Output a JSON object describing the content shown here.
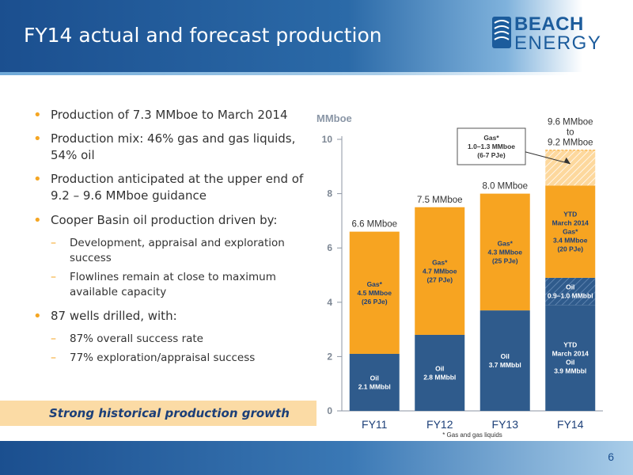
{
  "header": {
    "title": "FY14 actual and forecast production",
    "logo": {
      "line1": "BEACH",
      "line2": "ENERGY"
    }
  },
  "bullets": [
    {
      "text": "Production of 7.3 MMboe to March 2014",
      "level": 1
    },
    {
      "text": "Production mix: 46% gas and gas liquids, 54% oil",
      "level": 1
    },
    {
      "text": "Production anticipated at the upper end of 9.2 – 9.6 MMboe guidance",
      "level": 1
    },
    {
      "text": "Cooper Basin oil production driven by:",
      "level": 1
    },
    {
      "text": "Development, appraisal and exploration success",
      "level": 2
    },
    {
      "text": "Flowlines remain at close to maximum available capacity",
      "level": 2
    },
    {
      "text": "87 wells drilled, with:",
      "level": 1
    },
    {
      "text": "87% overall success rate",
      "level": 2
    },
    {
      "text": "77% exploration/appraisal success",
      "level": 2
    }
  ],
  "banner": "Strong historical production growth",
  "footer": {
    "page_number": "6"
  },
  "colors": {
    "oil": "#2f5b8c",
    "gas": "#f7a421",
    "forecast": "#fdd89d",
    "header": "#1b4f8f"
  },
  "chart_data": {
    "type": "bar",
    "stacked": true,
    "ylabel": "MMboe",
    "ylim": [
      0,
      10
    ],
    "yticks": [
      0,
      2,
      4,
      6,
      8,
      10
    ],
    "categories": [
      "FY11",
      "FY12",
      "FY13",
      "FY14"
    ],
    "series": [
      {
        "values": [
          2.1,
          2.8,
          3.7,
          3.9
        ],
        "color": "#2f5b8c"
      },
      {
        "values": [
          0,
          0,
          0,
          1.0
        ],
        "color": "#2f5b8c",
        "hatched": true
      },
      {
        "values": [
          4.5,
          4.7,
          4.3,
          3.4
        ],
        "color": "#f7a421"
      },
      {
        "values": [
          0,
          0,
          0,
          1.3
        ],
        "color": "#fdd89d",
        "hatched": true
      }
    ],
    "totals": [
      "6.6 MMboe",
      "7.5 MMboe",
      "8.0 MMboe",
      "9.6 MMboe\nto\n9.2 MMboe"
    ],
    "segment_labels": [
      [
        "Oil\n2.1 MMbbl",
        "",
        "Gas*\n4.5 MMboe\n(26 PJe)",
        ""
      ],
      [
        "Oil\n2.8 MMbbl",
        "",
        "Gas*\n4.7 MMboe\n(27 PJe)",
        ""
      ],
      [
        "Oil\n3.7 MMbbl",
        "",
        "Gas*\n4.3 MMboe\n(25 PJe)",
        ""
      ],
      [
        "YTD\nMarch 2014\nOil\n3.9 MMbbl",
        "Oil\n0.9–1.0 MMbbl",
        "YTD\nMarch 2014\nGas*\n3.4 MMboe\n(20 PJe)",
        ""
      ]
    ],
    "callout": "Gas*\n1.0–1.3 MMboe\n(6-7 PJe)",
    "footnote": "* Gas and gas liquids"
  }
}
